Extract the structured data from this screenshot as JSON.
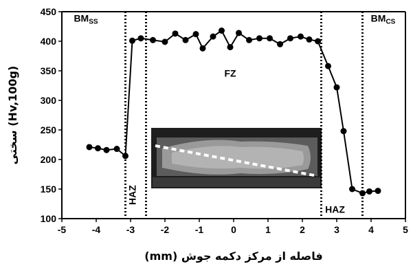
{
  "chart_data": {
    "type": "line",
    "title": "",
    "xlabel": "فاصله از مرکز دکمه جوش (mm)",
    "ylabel": "سختی (Hv,100g)",
    "xlim": [
      -5,
      5
    ],
    "ylim": [
      100,
      450
    ],
    "xticks": [
      "-5",
      "-4",
      "-3",
      "-2",
      "-1",
      "0",
      "1",
      "2",
      "3",
      "4",
      "5"
    ],
    "yticks": [
      "100",
      "150",
      "200",
      "250",
      "300",
      "350",
      "400",
      "450"
    ],
    "grid": false,
    "series": [
      {
        "x": [
          -4.2,
          -3.95,
          -3.7,
          -3.4,
          -3.15,
          -2.95,
          -2.7,
          -2.35,
          -2.0,
          -1.7,
          -1.4,
          -1.1,
          -0.9,
          -0.6,
          -0.35,
          -0.1,
          0.15,
          0.45,
          0.75,
          1.05,
          1.35,
          1.65,
          1.95,
          2.2,
          2.45,
          2.75,
          3.0,
          3.2,
          3.45,
          3.75,
          3.95,
          4.2
        ],
        "y": [
          221,
          219,
          216,
          218,
          206,
          401,
          405,
          402,
          399,
          413,
          402,
          412,
          388,
          408,
          418,
          390,
          414,
          402,
          405,
          405,
          395,
          405,
          408,
          403,
          400,
          358,
          322,
          248,
          150,
          143,
          146,
          147
        ]
      }
    ],
    "vlines": [
      -3.15,
      -2.55,
      2.55,
      3.75
    ],
    "regions": [
      {
        "text": "BM",
        "sub": "SS",
        "x": -4.3,
        "y": 433
      },
      {
        "text": "BM",
        "sub": "CS",
        "x": 4.35,
        "y": 433
      },
      {
        "text": "FZ",
        "x": -0.1,
        "y": 340
      },
      {
        "text": "HAZ",
        "x": 2.95,
        "y": 110
      },
      {
        "text": "HAZ",
        "x": -2.85,
        "y": 140,
        "rotated": true
      }
    ]
  },
  "inset": {
    "description_icon": "weld-micrograph-image"
  }
}
